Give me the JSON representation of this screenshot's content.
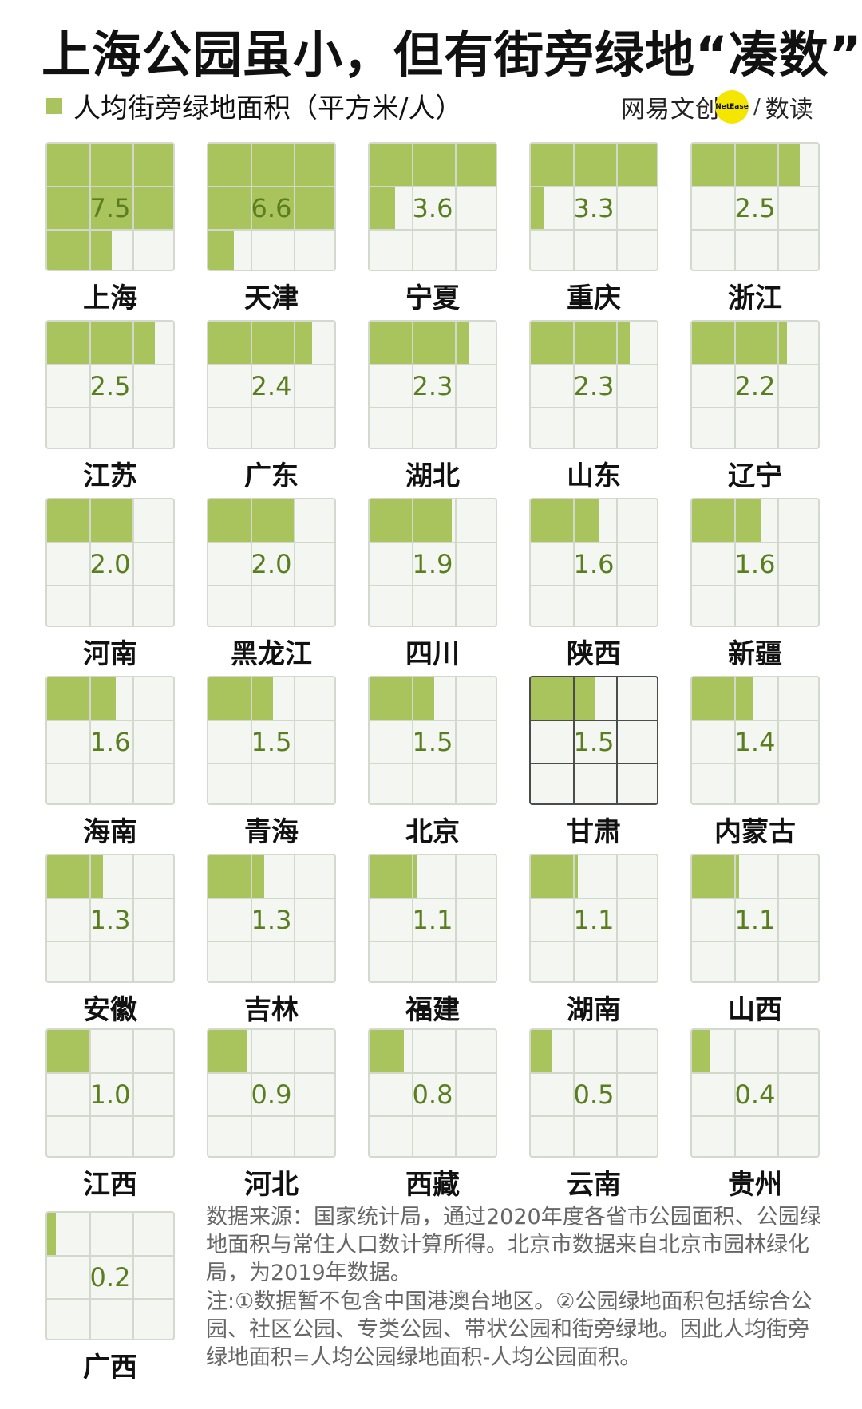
{
  "title": "上海公园虽小，但有街旁绿地“凑数”",
  "legend": {
    "label": "人均街旁绿地面积（平方米/人）",
    "color": "#a9c35d"
  },
  "brand": {
    "name": "网易文创",
    "dot": "NetEase",
    "sub": "数读"
  },
  "chart_data": {
    "type": "waffle",
    "unit": "平方米/人",
    "cells_per_grid": 9,
    "categories": [
      "上海",
      "天津",
      "宁夏",
      "重庆",
      "浙江",
      "江苏",
      "广东",
      "湖北",
      "山东",
      "辽宁",
      "河南",
      "黑龙江",
      "四川",
      "陕西",
      "新疆",
      "海南",
      "青海",
      "北京",
      "甘肃",
      "内蒙古",
      "安徽",
      "吉林",
      "福建",
      "湖南",
      "山西",
      "江西",
      "河北",
      "西藏",
      "云南",
      "贵州",
      "广西"
    ],
    "values": [
      7.5,
      6.6,
      3.6,
      3.3,
      2.5,
      2.5,
      2.4,
      2.3,
      2.3,
      2.2,
      2.0,
      2.0,
      1.9,
      1.6,
      1.6,
      1.6,
      1.5,
      1.5,
      1.5,
      1.4,
      1.3,
      1.3,
      1.1,
      1.1,
      1.1,
      1.0,
      0.9,
      0.8,
      0.5,
      0.4,
      0.2
    ],
    "labels": [
      "7.5",
      "6.6",
      "3.6",
      "3.3",
      "2.5",
      "2.5",
      "2.4",
      "2.3",
      "2.3",
      "2.2",
      "2.0",
      "2.0",
      "1.9",
      "1.6",
      "1.6",
      "1.6",
      "1.5",
      "1.5",
      "1.5",
      "1.4",
      "1.3",
      "1.3",
      "1.1",
      "1.1",
      "1.1",
      "1.0",
      "0.9",
      "0.8",
      "0.5",
      "0.4",
      "0.2"
    ],
    "highlight": [
      "甘肃"
    ]
  },
  "source": "数据来源：国家统计局，通过2020年度各省市公园面积、公园绿地面积与常住人口数计算所得。北京市数据来自北京市园林绿化局，为2019年数据。",
  "note": "注:①数据暂不包含中国港澳台地区。②公园绿地面积包括综合公园、社区公园、专类公园、带状公园和街旁绿地。因此人均街旁绿地面积=人均公园绿地面积-人均公园面积。"
}
